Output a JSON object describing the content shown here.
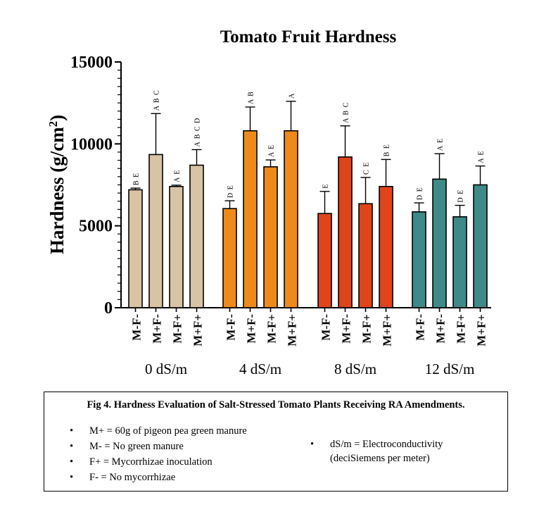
{
  "chart_data": {
    "type": "bar",
    "title": "Tomato Fruit Hardness",
    "ylabel": "Hardness (g/cm",
    "ylabel_superscript": "2",
    "ylabel_close": ")",
    "ylim": [
      0,
      15000
    ],
    "y_ticks": [
      "0",
      "5000",
      "10000",
      "15000"
    ],
    "grid": false,
    "groups": [
      {
        "label": "0 dS/m",
        "color": "#D9C3A5",
        "bars": [
          {
            "category": "M-F-",
            "value": 7200,
            "error": 100,
            "letters": "B E"
          },
          {
            "category": "M+F-",
            "value": 9350,
            "error": 2500,
            "letters": "A B C"
          },
          {
            "category": "M-F+",
            "value": 7400,
            "error": 80,
            "letters": "A E"
          },
          {
            "category": "M+F+",
            "value": 8700,
            "error": 950,
            "letters": "A B C D"
          }
        ]
      },
      {
        "label": "4 dS/m",
        "color": "#EE8A1B",
        "bars": [
          {
            "category": "M-F-",
            "value": 6050,
            "error": 480,
            "letters": "D E"
          },
          {
            "category": "M+F-",
            "value": 10800,
            "error": 1450,
            "letters": "A B"
          },
          {
            "category": "M-F+",
            "value": 8600,
            "error": 420,
            "letters": "A E"
          },
          {
            "category": "M+F+",
            "value": 10800,
            "error": 1800,
            "letters": "A"
          }
        ]
      },
      {
        "label": "8 dS/m",
        "color": "#E0441A",
        "bars": [
          {
            "category": "M-F-",
            "value": 5750,
            "error": 1350,
            "letters": "E"
          },
          {
            "category": "M+F-",
            "value": 9200,
            "error": 1900,
            "letters": "A B C"
          },
          {
            "category": "M-F+",
            "value": 6350,
            "error": 1600,
            "letters": "C E"
          },
          {
            "category": "M+F+",
            "value": 7400,
            "error": 1650,
            "letters": "B E"
          }
        ]
      },
      {
        "label": "12 dS/m",
        "color": "#3E8A88",
        "bars": [
          {
            "category": "M-F-",
            "value": 5850,
            "error": 550,
            "letters": "D E"
          },
          {
            "category": "M+F-",
            "value": 7850,
            "error": 1550,
            "letters": "A E"
          },
          {
            "category": "M-F+",
            "value": 5550,
            "error": 700,
            "letters": "D E"
          },
          {
            "category": "M+F+",
            "value": 7500,
            "error": 1150,
            "letters": "A E"
          }
        ]
      }
    ]
  },
  "caption": {
    "title": "Fig 4. Hardness Evaluation of Salt-Stressed Tomato Plants Receiving RA Amendments.",
    "legend_left": [
      "M+ = 60g of pigeon pea green manure",
      "M- = No green manure",
      "F+ = Mycorrhizae inoculation",
      "F- = No mycorrhizae"
    ],
    "legend_right": [
      "dS/m = Electroconductivity (deciSiemens per meter)"
    ]
  }
}
